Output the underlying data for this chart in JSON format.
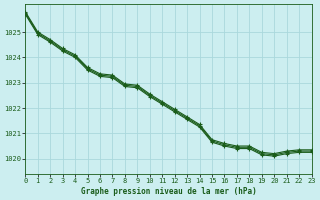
{
  "title": "Graphe pression niveau de la mer (hPa)",
  "background_color": "#cceef0",
  "grid_color": "#aad8dc",
  "line_color": "#1a5c1a",
  "xlim": [
    0,
    23
  ],
  "ylim": [
    1019.4,
    1026.1
  ],
  "yticks": [
    1020,
    1021,
    1022,
    1023,
    1024,
    1025
  ],
  "xticks": [
    0,
    1,
    2,
    3,
    4,
    5,
    6,
    7,
    8,
    9,
    10,
    11,
    12,
    13,
    14,
    15,
    16,
    17,
    18,
    19,
    20,
    21,
    22,
    23
  ],
  "series": [
    {
      "x": [
        0,
        1,
        2,
        3,
        4,
        5,
        6,
        7,
        8,
        9,
        10,
        11,
        12,
        13,
        14,
        15,
        16,
        17,
        18,
        19,
        20,
        21,
        22,
        23
      ],
      "y": [
        1025.75,
        1024.95,
        1024.65,
        1024.3,
        1024.05,
        1023.55,
        1023.3,
        1023.25,
        1022.9,
        1022.85,
        1022.5,
        1022.2,
        1021.9,
        1021.6,
        1021.3,
        1020.7,
        1020.55,
        1020.45,
        1020.45,
        1020.2,
        1020.15,
        1020.25,
        1020.3,
        1020.3
      ]
    },
    {
      "x": [
        0,
        1,
        2,
        3,
        4,
        5,
        6,
        7,
        8,
        9,
        10,
        11,
        12,
        13,
        14,
        15,
        16,
        17,
        18,
        19,
        20,
        21,
        22,
        23
      ],
      "y": [
        1025.8,
        1025.0,
        1024.7,
        1024.35,
        1024.1,
        1023.6,
        1023.35,
        1023.3,
        1022.95,
        1022.9,
        1022.55,
        1022.25,
        1021.95,
        1021.65,
        1021.35,
        1020.75,
        1020.6,
        1020.5,
        1020.5,
        1020.25,
        1020.2,
        1020.3,
        1020.35,
        1020.35
      ]
    },
    {
      "x": [
        0,
        1,
        2,
        3,
        4,
        5,
        6,
        7,
        8,
        9,
        10,
        11,
        12,
        13,
        14,
        15,
        16,
        17,
        18,
        19,
        20,
        21,
        22,
        23
      ],
      "y": [
        1025.7,
        1024.9,
        1024.6,
        1024.25,
        1024.0,
        1023.5,
        1023.25,
        1023.2,
        1022.85,
        1022.8,
        1022.45,
        1022.15,
        1021.85,
        1021.55,
        1021.25,
        1020.65,
        1020.5,
        1020.4,
        1020.4,
        1020.15,
        1020.1,
        1020.2,
        1020.25,
        1020.25
      ]
    }
  ]
}
